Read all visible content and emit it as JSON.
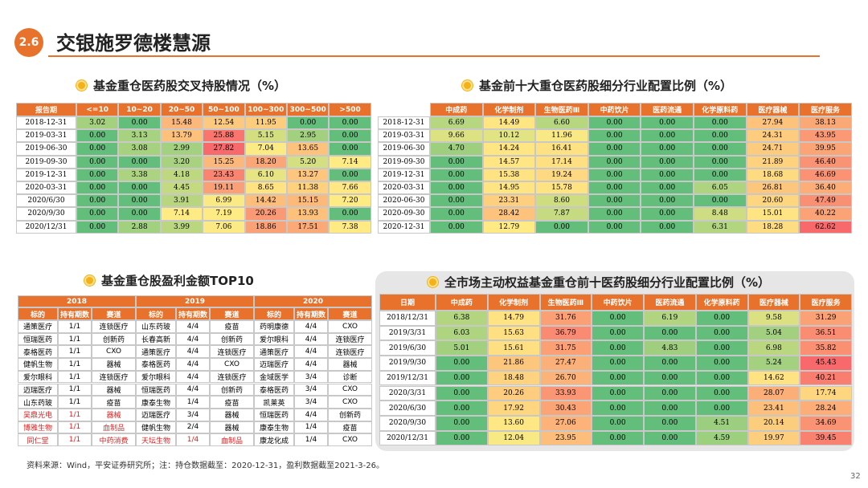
{
  "header": {
    "section": "2.6",
    "title": "交银施罗德楼慧源"
  },
  "table1": {
    "title": "基金重仓医药股交叉持股情况（%）",
    "columns": [
      "报告期",
      "<=10",
      "10~20",
      "20~50",
      "50~100",
      "100~300",
      "300~500",
      ">500"
    ],
    "rows": [
      [
        "2018-12-31",
        "3.02",
        "0.00",
        "15.48",
        "12.54",
        "11.95",
        "0.00",
        "0.00"
      ],
      [
        "2019-03-31",
        "0.00",
        "3.13",
        "13.79",
        "25.88",
        "5.15",
        "2.95",
        "0.00"
      ],
      [
        "2019-06-30",
        "0.00",
        "3.08",
        "2.99",
        "27.82",
        "7.04",
        "13.65",
        "0.00"
      ],
      [
        "2019-09-30",
        "0.00",
        "0.00",
        "3.20",
        "15.25",
        "18.20",
        "5.20",
        "7.14"
      ],
      [
        "2019-12-31",
        "0.00",
        "3.38",
        "4.18",
        "23.43",
        "6.10",
        "13.27",
        "0.00"
      ],
      [
        "2020-03-31",
        "0.00",
        "0.00",
        "4.45",
        "19.11",
        "8.65",
        "11.38",
        "7.66"
      ],
      [
        "2020/6/30",
        "0.00",
        "0.00",
        "3.91",
        "6.99",
        "14.42",
        "15.15",
        "7.20"
      ],
      [
        "2020/9/30",
        "0.00",
        "0.00",
        "7.14",
        "7.19",
        "20.26",
        "13.93",
        "0.00"
      ],
      [
        "2020/12/31",
        "0.00",
        "2.88",
        "3.99",
        "7.06",
        "18.86",
        "17.51",
        "7.38"
      ]
    ]
  },
  "table2": {
    "title": "基金前十大重仓医药股细分行业配置比例（%）",
    "columns": [
      "中成药",
      "化学制剂",
      "生物医药Ⅲ",
      "中药饮片",
      "医药流通",
      "化学原料药",
      "医疗器械",
      "医疗服务"
    ],
    "rows": [
      [
        "2018-12-31",
        "6.69",
        "14.49",
        "6.60",
        "0.00",
        "0.00",
        "0.00",
        "27.94",
        "38.13"
      ],
      [
        "2019-03-31",
        "9.66",
        "10.12",
        "11.96",
        "0.00",
        "0.00",
        "0.00",
        "24.31",
        "43.95"
      ],
      [
        "2019-06-30",
        "4.70",
        "14.24",
        "16.41",
        "0.00",
        "0.00",
        "0.00",
        "24.71",
        "39.95"
      ],
      [
        "2019-09-30",
        "0.00",
        "14.57",
        "17.14",
        "0.00",
        "0.00",
        "0.00",
        "21.89",
        "46.40"
      ],
      [
        "2019-12-31",
        "0.00",
        "15.38",
        "19.24",
        "0.00",
        "0.00",
        "0.00",
        "18.68",
        "46.69"
      ],
      [
        "2020-03-31",
        "0.00",
        "14.95",
        "15.78",
        "0.00",
        "0.00",
        "6.05",
        "26.81",
        "36.40"
      ],
      [
        "2020-06-30",
        "0.00",
        "23.31",
        "8.60",
        "0.00",
        "0.00",
        "0.00",
        "20.60",
        "47.49"
      ],
      [
        "2020-09-30",
        "0.00",
        "28.42",
        "7.87",
        "0.00",
        "0.00",
        "8.48",
        "15.01",
        "40.22"
      ],
      [
        "2020-12-31",
        "0.00",
        "12.79",
        "0.00",
        "0.00",
        "0.00",
        "6.31",
        "18.28",
        "62.62"
      ]
    ]
  },
  "table3": {
    "title": "基金重仓股盈利金额TOP10",
    "years": [
      "2018",
      "2019",
      "2020"
    ],
    "columns": [
      "标的",
      "持有期数",
      "赛道"
    ],
    "rows": [
      [
        "通策医疗",
        "1/1",
        "连锁医疗",
        "山东药玻",
        "4/4",
        "疫苗",
        "药明康德",
        "4/4",
        "CXO"
      ],
      [
        "恒瑞医药",
        "1/1",
        "创新药",
        "长春高新",
        "4/4",
        "创新药",
        "爱尔眼科",
        "4/4",
        "连锁医疗"
      ],
      [
        "泰格医药",
        "1/1",
        "CXO",
        "通策医疗",
        "4/4",
        "连锁医疗",
        "通策医疗",
        "4/4",
        "连锁医疗"
      ],
      [
        "健帆生物",
        "1/1",
        "器械",
        "泰格医药",
        "4/4",
        "CXO",
        "迈瑞医疗",
        "4/4",
        "器械"
      ],
      [
        "爱尔眼科",
        "1/1",
        "连锁医疗",
        "爱尔眼科",
        "4/4",
        "连锁医疗",
        "金域医学",
        "3/4",
        "诊断"
      ],
      [
        "迈瑞医疗",
        "1/1",
        "器械",
        "恒瑞医药",
        "4/4",
        "创新药",
        "泰格医药",
        "3/4",
        "CXO"
      ],
      [
        "山东药玻",
        "1/1",
        "疫苗",
        "康泰生物",
        "1/4",
        "疫苗",
        "凯莱英",
        "3/4",
        "CXO"
      ],
      [
        "吴鼎光电",
        "1/1",
        "器械",
        "迈瑞医疗",
        "3/4",
        "器械",
        "恒瑞医药",
        "4/4",
        "创新药"
      ],
      [
        "博雅生物",
        "1/1",
        "血制品",
        "健帆生物",
        "2/4",
        "器械",
        "康泰生物",
        "1/4",
        "疫苗"
      ],
      [
        "同仁堂",
        "1/1",
        "中药消费",
        "天坛生物",
        "1/4",
        "血制品",
        "康龙化成",
        "1/4",
        "CXO"
      ]
    ],
    "row_colors": [
      [
        "#000",
        "#000",
        "#000"
      ],
      [
        "#000",
        "#000",
        "#000"
      ],
      [
        "#000",
        "#000",
        "#000"
      ],
      [
        "#000",
        "#000",
        "#000"
      ],
      [
        "#000",
        "#000",
        "#000"
      ],
      [
        "#000",
        "#000",
        "#000"
      ],
      [
        "#000",
        "#000",
        "#000"
      ],
      [
        "#e02020",
        "#000",
        "#000"
      ],
      [
        "#e02020",
        "#000",
        "#000"
      ],
      [
        "#e02020",
        "#e02020",
        "#000"
      ]
    ]
  },
  "table4": {
    "title": "全市场主动权益基金重仓前十医药股细分行业配置比例（%）",
    "columns": [
      "日期",
      "中成药",
      "化学制剂",
      "生物医药Ⅲ",
      "中药饮片",
      "医药流通",
      "化学原料药",
      "医疗器械",
      "医疗服务"
    ],
    "rows": [
      [
        "2018/12/31",
        "6.38",
        "14.79",
        "31.76",
        "0.00",
        "6.19",
        "0.00",
        "9.58",
        "31.29"
      ],
      [
        "2019/3/31",
        "6.03",
        "15.63",
        "36.79",
        "0.00",
        "0.00",
        "0.00",
        "5.04",
        "36.51"
      ],
      [
        "2019/6/30",
        "5.01",
        "15.61",
        "31.75",
        "0.00",
        "4.83",
        "0.00",
        "6.98",
        "35.82"
      ],
      [
        "2019/9/30",
        "0.00",
        "21.86",
        "27.47",
        "0.00",
        "0.00",
        "0.00",
        "5.24",
        "45.43"
      ],
      [
        "2019/12/31",
        "0.00",
        "18.48",
        "26.70",
        "0.00",
        "0.00",
        "0.00",
        "14.62",
        "40.21"
      ],
      [
        "2020/3/31",
        "0.00",
        "20.26",
        "33.93",
        "0.00",
        "0.00",
        "0.00",
        "28.07",
        "17.74"
      ],
      [
        "2020/6/30",
        "0.00",
        "17.92",
        "30.43",
        "0.00",
        "0.00",
        "0.00",
        "23.41",
        "28.24"
      ],
      [
        "2020/9/30",
        "0.00",
        "13.60",
        "27.06",
        "0.00",
        "0.00",
        "4.51",
        "20.14",
        "34.69"
      ],
      [
        "2020/12/31",
        "0.00",
        "12.04",
        "23.95",
        "0.00",
        "0.00",
        "4.59",
        "19.97",
        "39.45"
      ]
    ]
  },
  "footer": {
    "source": "资料来源：Wind，平安证券研究所；注：持仓数据截至：2020-12-31，盈利数据截至2021-3-26。",
    "page": "32"
  }
}
